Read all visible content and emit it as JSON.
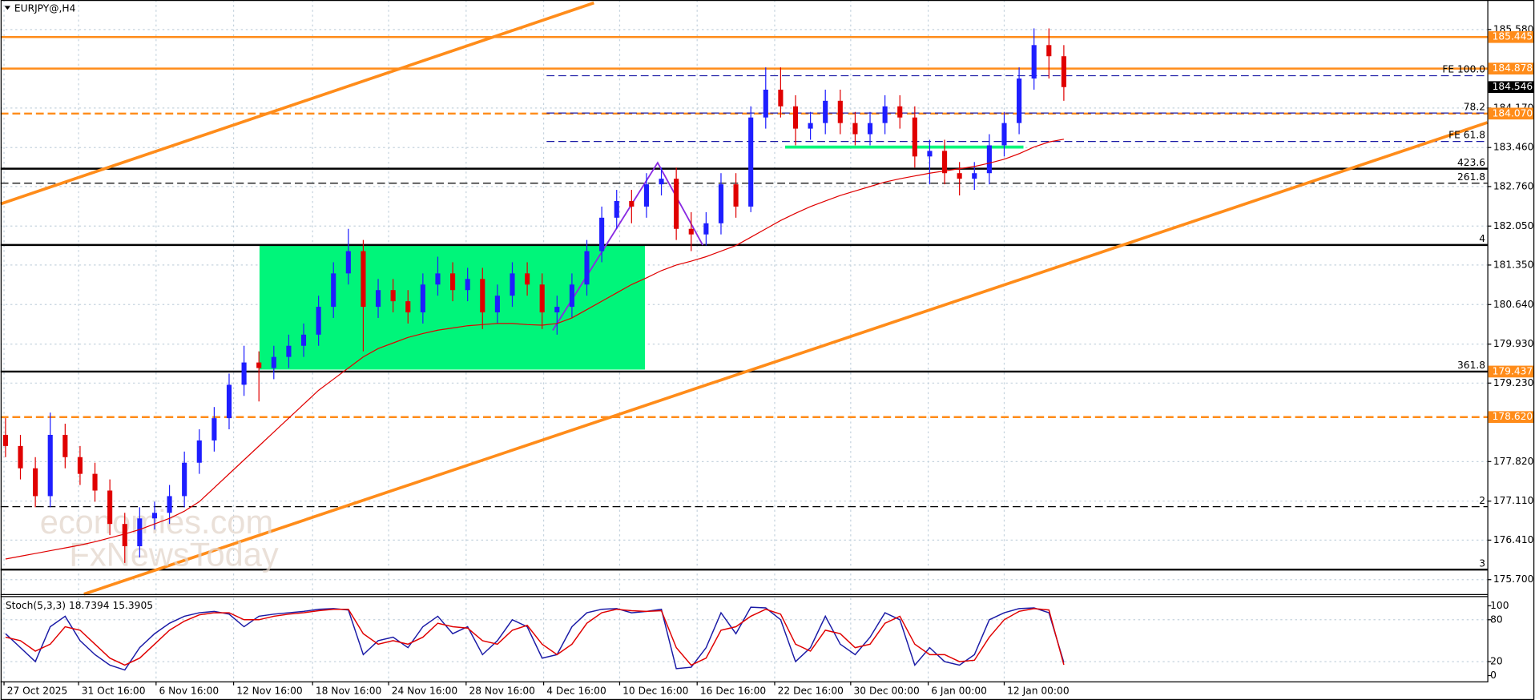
{
  "header": "EURJPY@,H4",
  "watermark": [
    "economies.com",
    "FxNewsToday"
  ],
  "chart_data": [
    {
      "type": "candlestick",
      "up_color": "#1e1eff",
      "down_color": "#e00000",
      "grid": true,
      "xlim": [
        -0.33,
        99.41
      ],
      "xticks": [
        {
          "value": -0.1,
          "label": "27 Oct 2025"
        },
        {
          "value": 4.9,
          "label": "31 Oct 16:00"
        },
        {
          "value": 10.1,
          "label": "6 Nov 16:00"
        },
        {
          "value": 15.3,
          "label": "12 Nov 16:00"
        },
        {
          "value": 20.6,
          "label": "18 Nov 16:00"
        },
        {
          "value": 25.7,
          "label": "24 Nov 16:00"
        },
        {
          "value": 30.9,
          "label": "28 Nov 16:00"
        },
        {
          "value": 36.1,
          "label": "4 Dec 16:00"
        },
        {
          "value": 41.2,
          "label": "10 Dec 16:00"
        },
        {
          "value": 46.4,
          "label": "16 Dec 16:00"
        },
        {
          "value": 51.6,
          "label": "22 Dec 16:00"
        },
        {
          "value": 56.7,
          "label": "30 Dec 00:00"
        },
        {
          "value": 61.9,
          "label": "6 Jan 00:00"
        },
        {
          "value": 67.0,
          "label": "12 Jan 00:00"
        }
      ],
      "ylim": [
        175.44,
        186.11
      ],
      "yticks": [
        {
          "value": 185.58,
          "label": "185.580"
        },
        {
          "value": 184.17,
          "label": "184.170"
        },
        {
          "value": 183.46,
          "label": "183.460"
        },
        {
          "value": 182.76,
          "label": "182.760"
        },
        {
          "value": 182.05,
          "label": "182.050"
        },
        {
          "value": 181.35,
          "label": "181.350"
        },
        {
          "value": 180.64,
          "label": "180.640"
        },
        {
          "value": 179.93,
          "label": "179.930"
        },
        {
          "value": 179.23,
          "label": "179.230"
        },
        {
          "value": 177.82,
          "label": "177.820"
        },
        {
          "value": 177.11,
          "label": "177.110"
        },
        {
          "value": 176.41,
          "label": "176.410"
        },
        {
          "value": 175.7,
          "label": "175.700"
        }
      ],
      "candles": {
        "open": [
          178.3,
          178.1,
          177.7,
          177.2,
          178.3,
          177.9,
          177.6,
          177.3,
          176.7,
          176.3,
          176.8,
          176.9,
          177.2,
          177.8,
          178.2,
          178.6,
          179.2,
          179.6,
          179.5,
          179.7,
          179.9,
          180.1,
          180.6,
          181.2,
          181.6,
          180.6,
          180.9,
          180.7,
          180.5,
          181.0,
          181.2,
          180.9,
          181.1,
          180.5,
          180.8,
          181.2,
          181.0,
          180.5,
          180.6,
          181.0,
          181.6,
          182.2,
          182.5,
          182.4,
          182.8,
          182.9,
          182.0,
          181.9,
          182.1,
          182.8,
          182.4,
          184.0,
          184.5,
          184.2,
          183.8,
          183.9,
          184.3,
          183.9,
          183.7,
          183.9,
          184.2,
          184.0,
          183.3,
          183.4,
          183.0,
          182.9,
          183.0,
          183.5,
          183.9,
          184.7,
          185.3,
          185.1
        ],
        "high": [
          178.6,
          178.3,
          177.9,
          178.7,
          178.5,
          178.1,
          177.8,
          177.5,
          176.9,
          177.0,
          177.1,
          177.4,
          178.0,
          178.4,
          178.8,
          179.4,
          179.9,
          179.8,
          179.9,
          180.1,
          180.3,
          180.8,
          181.4,
          182.0,
          181.8,
          181.1,
          181.1,
          180.9,
          181.2,
          181.5,
          181.4,
          181.3,
          181.3,
          181.0,
          181.4,
          181.4,
          181.2,
          180.8,
          181.2,
          181.8,
          182.4,
          182.7,
          182.7,
          183.0,
          183.1,
          183.1,
          182.3,
          182.3,
          183.0,
          183.0,
          184.2,
          184.9,
          184.9,
          184.4,
          184.1,
          184.5,
          184.5,
          184.1,
          184.1,
          184.4,
          184.4,
          184.2,
          183.6,
          183.6,
          183.2,
          183.2,
          183.7,
          184.1,
          184.9,
          185.6,
          185.6,
          185.3
        ],
        "low": [
          177.9,
          177.5,
          177.0,
          177.0,
          177.7,
          177.4,
          177.1,
          176.5,
          176.0,
          176.1,
          176.6,
          176.7,
          177.0,
          177.6,
          178.0,
          178.4,
          179.0,
          178.9,
          179.3,
          179.5,
          179.7,
          179.9,
          180.4,
          181.0,
          179.8,
          180.4,
          180.5,
          180.3,
          180.3,
          180.8,
          180.7,
          180.7,
          180.2,
          180.3,
          180.6,
          180.8,
          180.2,
          180.1,
          180.4,
          180.8,
          181.4,
          182.0,
          182.1,
          182.2,
          182.6,
          181.8,
          181.6,
          181.7,
          181.9,
          182.2,
          182.3,
          183.8,
          184.0,
          183.5,
          183.6,
          183.7,
          183.7,
          183.5,
          183.5,
          183.7,
          183.8,
          183.1,
          182.8,
          182.8,
          182.6,
          182.7,
          182.8,
          183.3,
          183.7,
          184.5,
          184.7,
          184.3
        ],
        "close": [
          178.1,
          177.7,
          177.2,
          178.3,
          177.9,
          177.6,
          177.3,
          176.7,
          176.3,
          176.8,
          176.9,
          177.2,
          177.8,
          178.2,
          178.6,
          179.2,
          179.6,
          179.5,
          179.7,
          179.9,
          180.1,
          180.6,
          181.2,
          181.6,
          180.6,
          180.9,
          180.7,
          180.5,
          181.0,
          181.2,
          180.9,
          181.1,
          180.5,
          180.8,
          181.2,
          181.0,
          180.5,
          180.6,
          181.0,
          181.6,
          182.2,
          182.5,
          182.4,
          182.8,
          182.9,
          182.0,
          181.9,
          182.1,
          182.8,
          182.4,
          184.0,
          184.5,
          184.2,
          183.8,
          183.9,
          184.3,
          183.9,
          183.7,
          183.9,
          184.2,
          184.0,
          183.3,
          183.4,
          183.0,
          182.9,
          183.0,
          183.5,
          183.9,
          184.7,
          185.3,
          185.1,
          184.546
        ]
      },
      "ma": {
        "color": "#e00000",
        "values": [
          176.07,
          176.12,
          176.17,
          176.22,
          176.27,
          176.32,
          176.38,
          176.45,
          176.52,
          176.6,
          176.7,
          176.8,
          176.93,
          177.1,
          177.35,
          177.6,
          177.85,
          178.1,
          178.35,
          178.6,
          178.85,
          179.1,
          179.3,
          179.5,
          179.7,
          179.85,
          179.95,
          180.05,
          180.12,
          180.18,
          180.22,
          180.26,
          180.28,
          180.3,
          180.3,
          180.28,
          180.27,
          180.3,
          180.4,
          180.55,
          180.7,
          180.85,
          181.0,
          181.12,
          181.25,
          181.35,
          181.42,
          181.5,
          181.6,
          181.7,
          181.85,
          182.0,
          182.15,
          182.28,
          182.4,
          182.5,
          182.6,
          182.68,
          182.76,
          182.84,
          182.9,
          182.95,
          183.0,
          183.04,
          183.08,
          183.12,
          183.18,
          183.25,
          183.35,
          183.47,
          183.56,
          183.61
        ]
      },
      "levels": [
        {
          "value": 185.445,
          "color": "#ff8c1a",
          "style": "solid",
          "box": "185.445"
        },
        {
          "value": 184.878,
          "color": "#ff8c1a",
          "style": "solid",
          "box": "184.878"
        },
        {
          "value": 184.75,
          "color": "#1a1aa6",
          "style": "dash",
          "tag": "FE 100.0",
          "start": 36.3
        },
        {
          "value": 184.546,
          "color": "#000000",
          "style": "none",
          "box": "184.546"
        },
        {
          "value": 184.07,
          "color": "#ff8c1a",
          "style": "dash",
          "box": "184.070"
        },
        {
          "value": 184.08,
          "color": "#1a1aa6",
          "style": "dash",
          "tag": "78.2",
          "start": 36.3
        },
        {
          "value": 183.57,
          "color": "#1a1aa6",
          "style": "dash",
          "tag": "FE 61.8",
          "start": 36.3
        },
        {
          "value": 183.08,
          "color": "#000000",
          "style": "solid",
          "tag": "423.6"
        },
        {
          "value": 182.82,
          "color": "#000000",
          "style": "dash",
          "tag": "261.8"
        },
        {
          "value": 181.71,
          "color": "#000000",
          "style": "solid",
          "tag": "4"
        },
        {
          "value": 179.437,
          "color": "#000000",
          "style": "solid",
          "tag": "361.8",
          "box": "179.437",
          "box_color": "#ff8c1a"
        },
        {
          "value": 178.62,
          "color": "#ff8c1a",
          "style": "dash",
          "box": "178.620"
        },
        {
          "value": 177.01,
          "color": "#000000",
          "style": "dash",
          "tag": "2"
        },
        {
          "value": 175.88,
          "color": "#000000",
          "style": "solid",
          "tag": "3"
        }
      ]
    },
    {
      "type": "line",
      "title": "Stoch(5,3,3) 18.7394 15.3905",
      "ylim": [
        -8.3,
        112.5
      ],
      "yticks": [
        100,
        80,
        20,
        0
      ],
      "series": [
        {
          "color": "#1a1aa6",
          "values": [
            60,
            40,
            20,
            70,
            85,
            50,
            30,
            15,
            8,
            40,
            60,
            75,
            85,
            90,
            92,
            88,
            70,
            85,
            88,
            90,
            92,
            95,
            96,
            94,
            30,
            50,
            55,
            40,
            70,
            85,
            60,
            70,
            30,
            50,
            80,
            70,
            25,
            30,
            70,
            90,
            95,
            96,
            90,
            92,
            95,
            10,
            12,
            40,
            90,
            60,
            98,
            97,
            80,
            20,
            40,
            85,
            45,
            30,
            55,
            90,
            80,
            15,
            40,
            20,
            15,
            30,
            80,
            90,
            96,
            97,
            90,
            18.7394
          ]
        },
        {
          "color": "#e00000",
          "values": [
            55,
            50,
            35,
            45,
            70,
            65,
            45,
            25,
            15,
            25,
            45,
            65,
            78,
            87,
            90,
            90,
            80,
            80,
            85,
            88,
            90,
            93,
            95,
            95,
            60,
            45,
            50,
            45,
            55,
            75,
            70,
            68,
            50,
            45,
            65,
            72,
            45,
            30,
            45,
            75,
            90,
            95,
            93,
            92,
            93,
            40,
            15,
            25,
            65,
            70,
            85,
            95,
            88,
            45,
            35,
            65,
            60,
            40,
            45,
            75,
            85,
            45,
            30,
            30,
            20,
            22,
            55,
            80,
            92,
            96,
            94,
            15.3905
          ]
        }
      ]
    }
  ]
}
